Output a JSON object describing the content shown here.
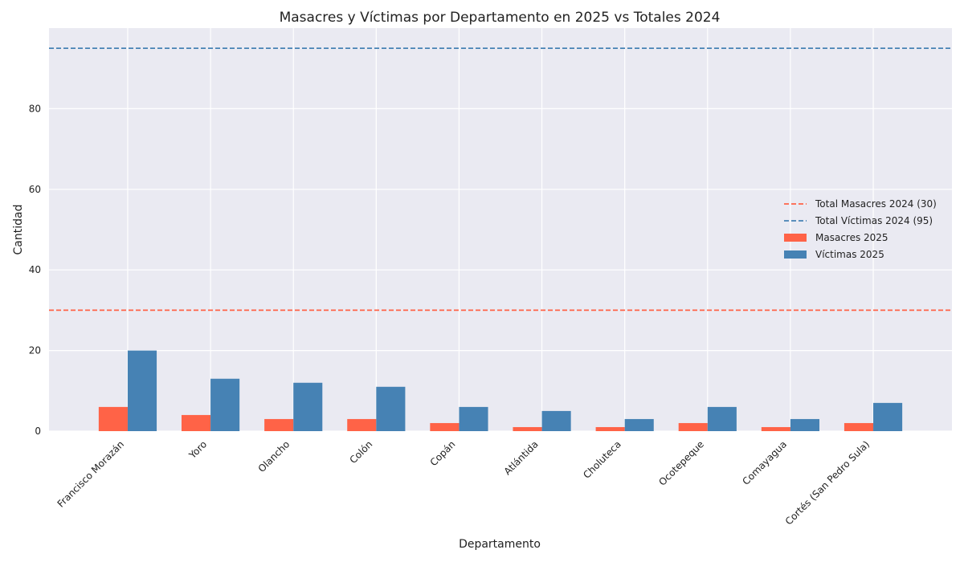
{
  "chart_data": {
    "type": "bar",
    "title": "Masacres y Víctimas por Departamento en 2025 vs Totales 2024",
    "xlabel": "Departamento",
    "ylabel": "Cantidad",
    "ylim": [
      0,
      100
    ],
    "yticks": [
      0,
      20,
      40,
      60,
      80
    ],
    "categories": [
      "Francisco Morazán",
      "Yoro",
      "Olancho",
      "Colón",
      "Copán",
      "Atlántida",
      "Choluteca",
      "Ocotepeque",
      "Comayagua",
      "Cortés (San Pedro Sula)"
    ],
    "series": [
      {
        "name": "Masacres 2025",
        "color": "#ff6347",
        "values": [
          6,
          4,
          3,
          3,
          2,
          1,
          1,
          2,
          1,
          2
        ]
      },
      {
        "name": "Víctimas 2025",
        "color": "#4682b4",
        "values": [
          20,
          13,
          12,
          11,
          6,
          5,
          3,
          6,
          3,
          7
        ]
      }
    ],
    "reference_lines": [
      {
        "name": "Total Masacres 2024 (30)",
        "value": 30,
        "color": "#ff6347",
        "style": "dashed"
      },
      {
        "name": "Total Víctimas 2024 (95)",
        "value": 95,
        "color": "#4682b4",
        "style": "dashed"
      }
    ],
    "legend": {
      "placement": "center-right",
      "entries": [
        "Total Masacres 2024 (30)",
        "Total Víctimas 2024 (95)",
        "Masacres 2025",
        "Víctimas 2025"
      ]
    },
    "grid": true,
    "background": "#eaeaf2"
  }
}
